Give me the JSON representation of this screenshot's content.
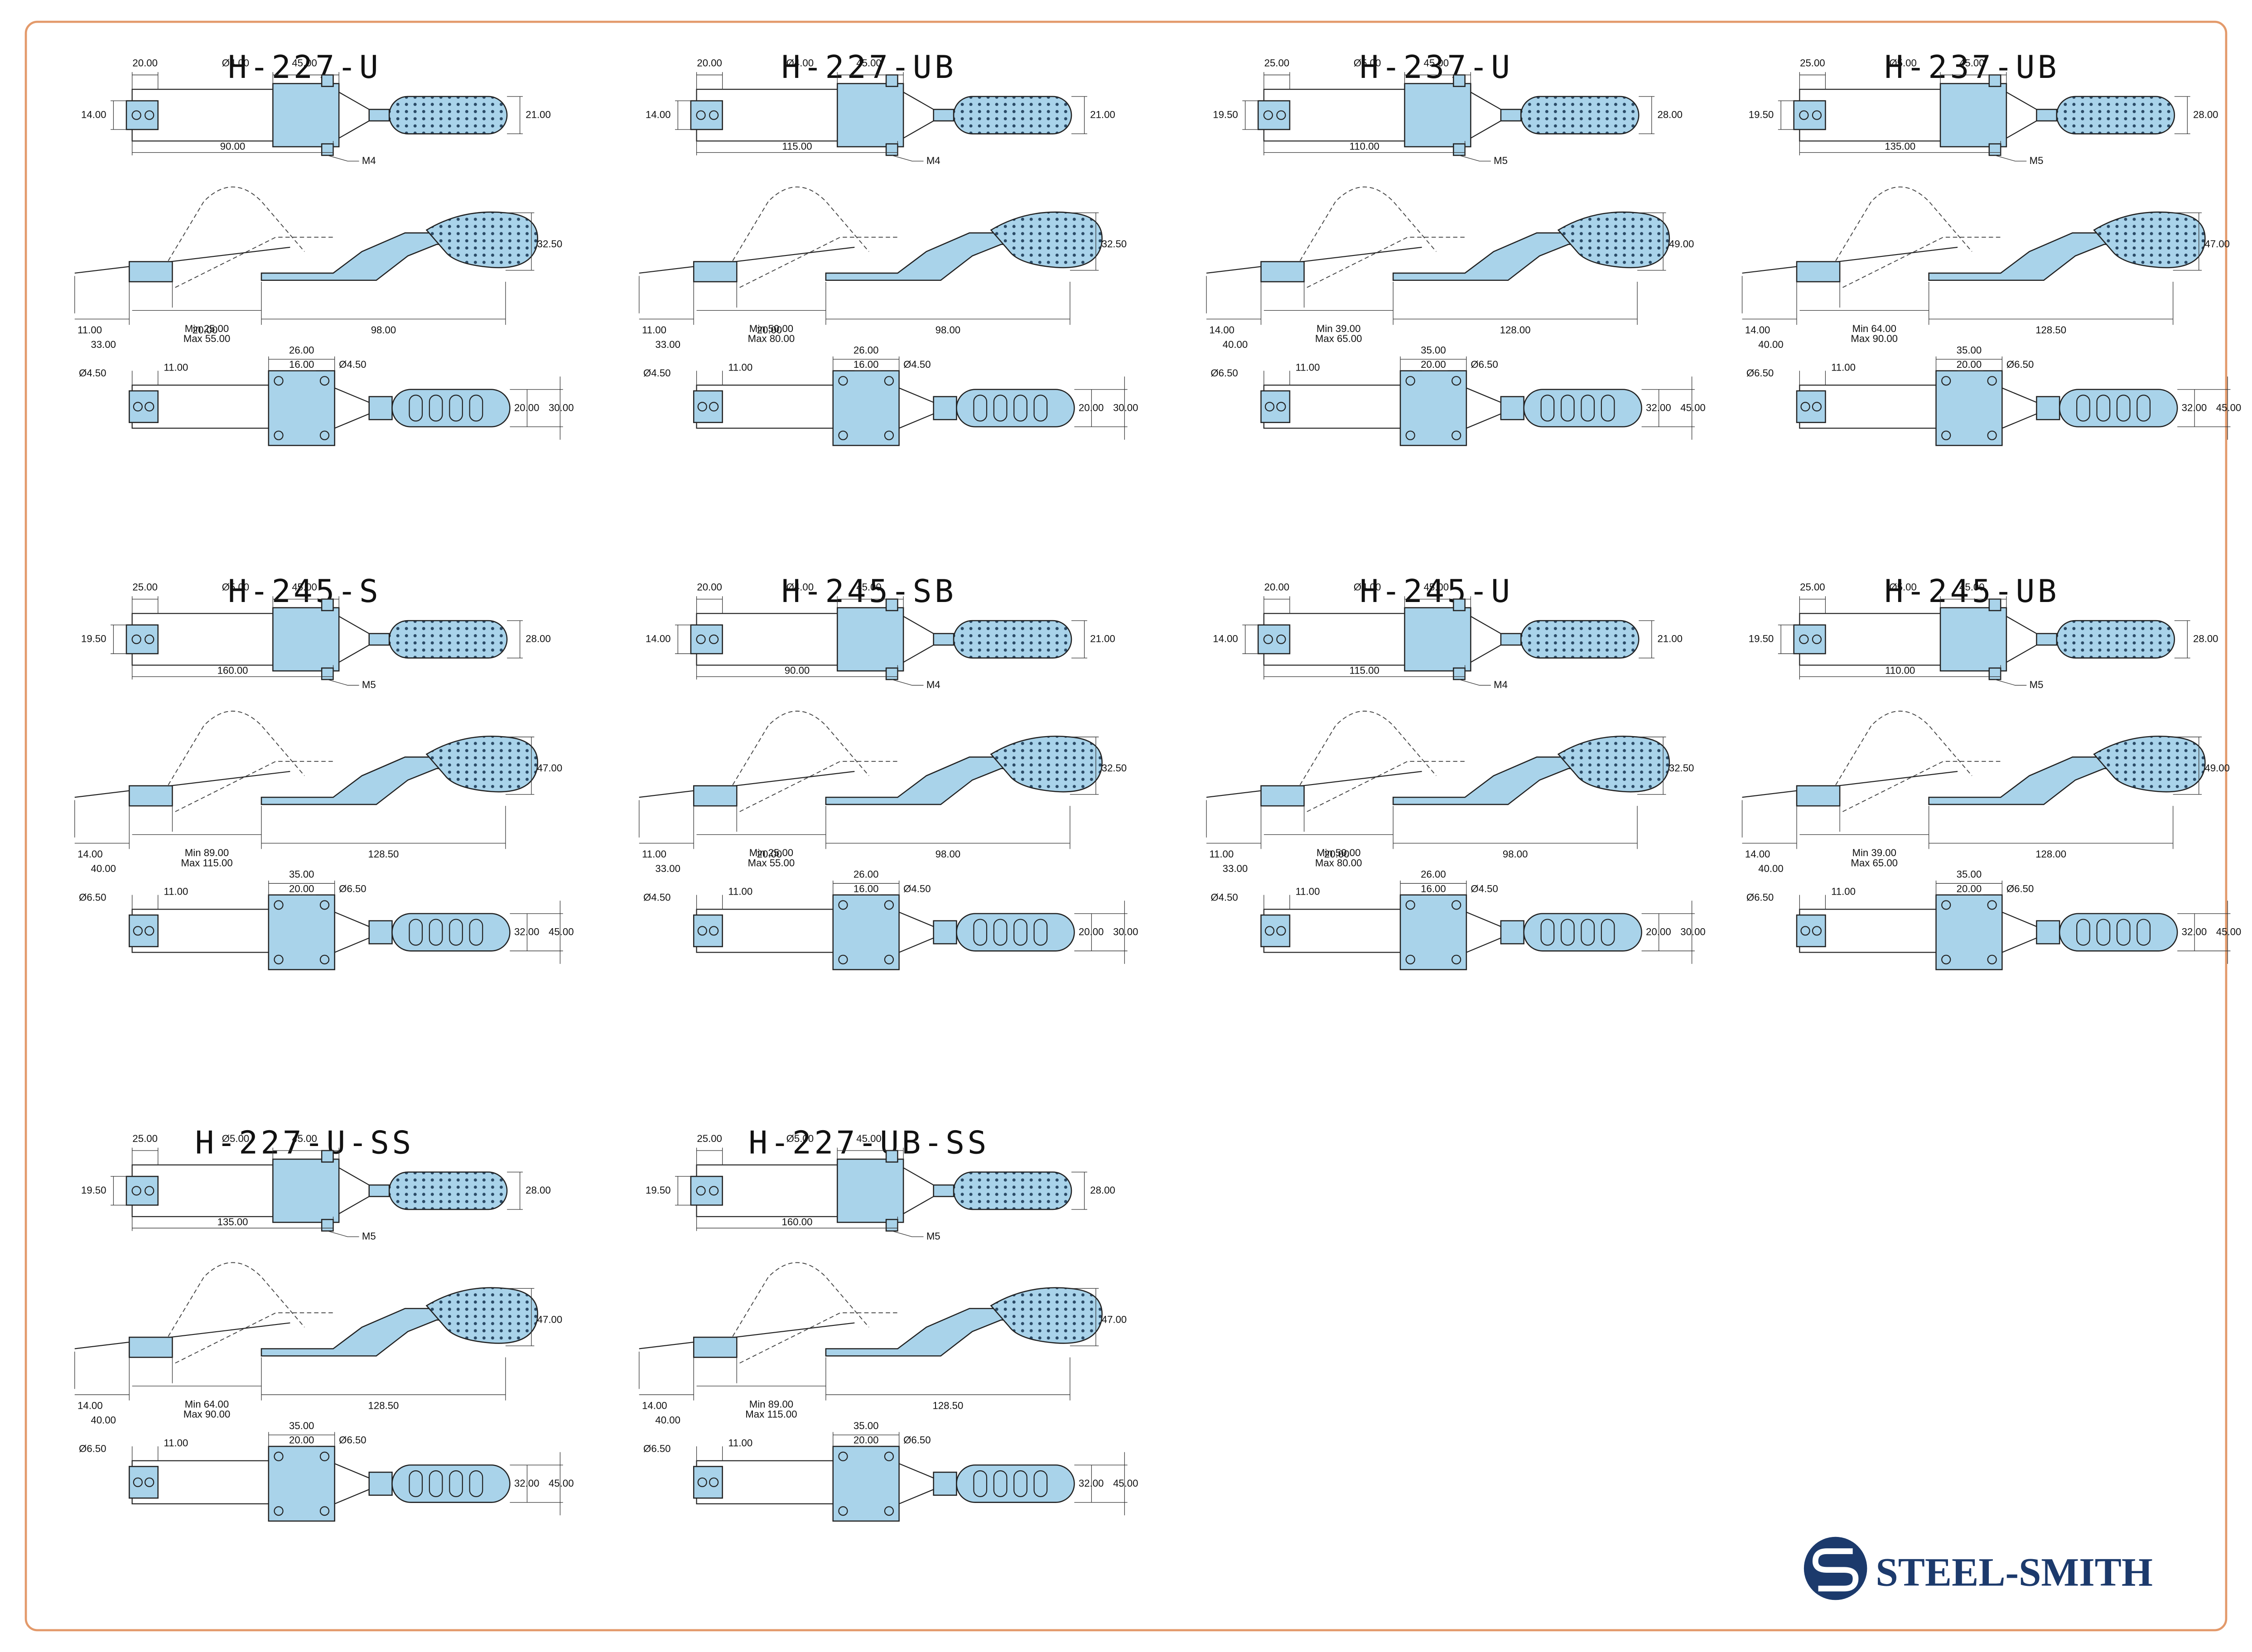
{
  "products": [
    {
      "name": "H-227-U",
      "top": {
        "w": "20.00",
        "d": "Ø4.00",
        "b": "45.00",
        "h": "14.00",
        "r": "21.00",
        "len": "90.00",
        "m": "M4"
      },
      "side": {
        "a": "11.00",
        "b": "20.00",
        "c": "33.00",
        "min": "Min 25.00",
        "max": "Max 55.00",
        "d": "98.00",
        "h": "32.50"
      },
      "bottom": {
        "dia": "Ø4.50",
        "a": "11.00",
        "b": "26.00",
        "c": "16.00",
        "d": "Ø4.50",
        "e": "20.00",
        "f": "30.00"
      }
    },
    {
      "name": "H-227-UB",
      "top": {
        "w": "20.00",
        "d": "Ø4.00",
        "b": "45.00",
        "h": "14.00",
        "r": "21.00",
        "len": "115.00",
        "m": "M4"
      },
      "side": {
        "a": "11.00",
        "b": "20.00",
        "c": "33.00",
        "min": "Min 50.00",
        "max": "Max 80.00",
        "d": "98.00",
        "h": "32.50"
      },
      "bottom": {
        "dia": "Ø4.50",
        "a": "11.00",
        "b": "26.00",
        "c": "16.00",
        "d": "Ø4.50",
        "e": "20.00",
        "f": "30.00"
      }
    },
    {
      "name": "H-237-U",
      "top": {
        "w": "25.00",
        "d": "Ø5.00",
        "b": "45.00",
        "h": "19.50",
        "r": "28.00",
        "len": "110.00",
        "m": "M5"
      },
      "side": {
        "a": "14.00",
        "c": "40.00",
        "min": "Min 39.00",
        "max": "Max 65.00",
        "d": "128.00",
        "h": "49.00"
      },
      "bottom": {
        "dia": "Ø6.50",
        "a": "11.00",
        "b": "35.00",
        "c": "20.00",
        "d": "Ø6.50",
        "e": "32.00",
        "f": "45.00"
      }
    },
    {
      "name": "H-237-UB",
      "top": {
        "w": "25.00",
        "d": "Ø5.00",
        "b": "45.00",
        "h": "19.50",
        "r": "28.00",
        "len": "135.00",
        "m": "M5"
      },
      "side": {
        "a": "14.00",
        "c": "40.00",
        "min": "Min 64.00",
        "max": "Max 90.00",
        "d": "128.50",
        "h": "47.00"
      },
      "bottom": {
        "dia": "Ø6.50",
        "a": "11.00",
        "b": "35.00",
        "c": "20.00",
        "d": "Ø6.50",
        "e": "32.00",
        "f": "45.00"
      }
    },
    {
      "name": "H-245-S",
      "top": {
        "w": "25.00",
        "d": "Ø5.00",
        "b": "45.00",
        "h": "19.50",
        "r": "28.00",
        "len": "160.00",
        "m": "M5"
      },
      "side": {
        "a": "14.00",
        "c": "40.00",
        "min": "Min 89.00",
        "max": "Max 115.00",
        "d": "128.50",
        "h": "47.00"
      },
      "bottom": {
        "dia": "Ø6.50",
        "a": "11.00",
        "b": "35.00",
        "c": "20.00",
        "d": "Ø6.50",
        "e": "32.00",
        "f": "45.00"
      }
    },
    {
      "name": "H-245-SB",
      "top": {
        "w": "20.00",
        "d": "Ø4.00",
        "b": "45.00",
        "h": "14.00",
        "r": "21.00",
        "len": "90.00",
        "m": "M4"
      },
      "side": {
        "a": "11.00",
        "b": "20.00",
        "c": "33.00",
        "min": "Min 25.00",
        "max": "Max 55.00",
        "d": "98.00",
        "h": "32.50"
      },
      "bottom": {
        "dia": "Ø4.50",
        "a": "11.00",
        "b": "26.00",
        "c": "16.00",
        "d": "Ø4.50",
        "e": "20.00",
        "f": "30.00"
      }
    },
    {
      "name": "H-245-U",
      "top": {
        "w": "20.00",
        "d": "Ø4.00",
        "b": "45.00",
        "h": "14.00",
        "r": "21.00",
        "len": "115.00",
        "m": "M4"
      },
      "side": {
        "a": "11.00",
        "b": "20.00",
        "c": "33.00",
        "min": "Min 50.00",
        "max": "Max 80.00",
        "d": "98.00",
        "h": "32.50"
      },
      "bottom": {
        "dia": "Ø4.50",
        "a": "11.00",
        "b": "26.00",
        "c": "16.00",
        "d": "Ø4.50",
        "e": "20.00",
        "f": "30.00"
      }
    },
    {
      "name": "H-245-UB",
      "top": {
        "w": "25.00",
        "d": "Ø5.00",
        "b": "45.00",
        "h": "19.50",
        "r": "28.00",
        "len": "110.00",
        "m": "M5"
      },
      "side": {
        "a": "14.00",
        "c": "40.00",
        "min": "Min 39.00",
        "max": "Max 65.00",
        "d": "128.00",
        "h": "49.00"
      },
      "bottom": {
        "dia": "Ø6.50",
        "a": "11.00",
        "b": "35.00",
        "c": "20.00",
        "d": "Ø6.50",
        "e": "32.00",
        "f": "45.00"
      }
    },
    {
      "name": "H-227-U-SS",
      "top": {
        "w": "25.00",
        "d": "Ø5.00",
        "b": "45.00",
        "h": "19.50",
        "r": "28.00",
        "len": "135.00",
        "m": "M5"
      },
      "side": {
        "a": "14.00",
        "c": "40.00",
        "min": "Min 64.00",
        "max": "Max 90.00",
        "d": "128.50",
        "h": "47.00"
      },
      "bottom": {
        "dia": "Ø6.50",
        "a": "11.00",
        "b": "35.00",
        "c": "20.00",
        "d": "Ø6.50",
        "e": "32.00",
        "f": "45.00"
      }
    },
    {
      "name": "H-227-UB-SS",
      "top": {
        "w": "25.00",
        "d": "Ø5.00",
        "b": "45.00",
        "h": "19.50",
        "r": "28.00",
        "len": "160.00",
        "m": "M5"
      },
      "side": {
        "a": "14.00",
        "c": "40.00",
        "min": "Min 89.00",
        "max": "Max 115.00",
        "d": "128.50",
        "h": "47.00"
      },
      "bottom": {
        "dia": "Ø6.50",
        "a": "11.00",
        "b": "35.00",
        "c": "20.00",
        "d": "Ø6.50",
        "e": "32.00",
        "f": "45.00"
      }
    }
  ],
  "logo": {
    "text": "STEEL-SMITH"
  }
}
